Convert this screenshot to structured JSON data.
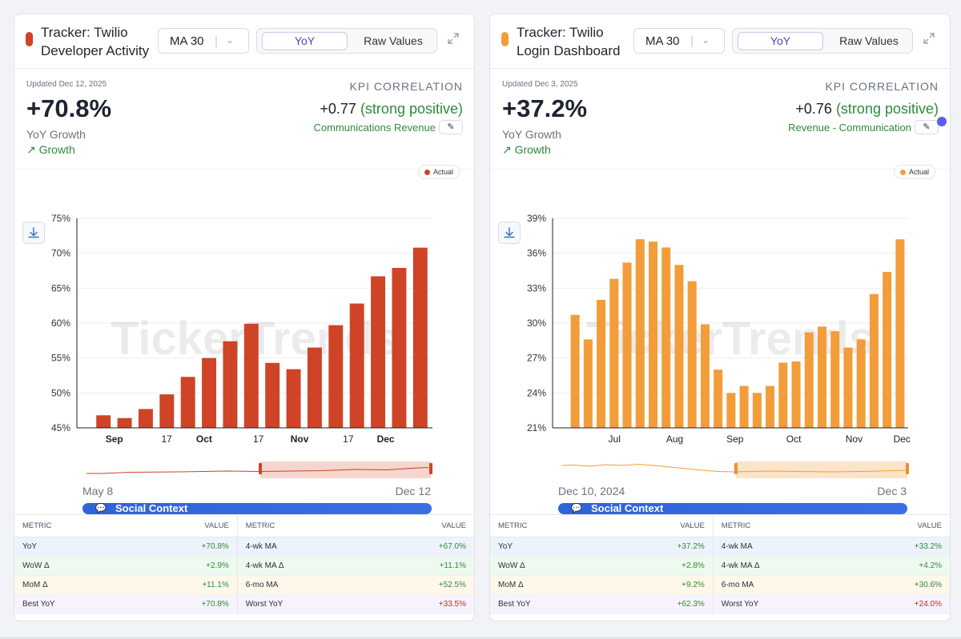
{
  "panels": [
    {
      "title": "Tracker: Twilio Developer Activity",
      "accent": "#cf4326",
      "ma_label": "MA 30",
      "toggle": {
        "active": "YoY",
        "inactive": "Raw Values"
      },
      "updated": "Updated Dec 12, 2025",
      "headline_value": "+70.8%",
      "headline_label": "YoY Growth",
      "trend_label": "Growth",
      "kpi_heading": "KPI CORRELATION",
      "corr_value": "+0.77",
      "corr_strength": "(strong positive)",
      "corr_metric": "Communications Revenue",
      "legend_label": "Actual",
      "watermark": "TickerTrends",
      "navigator": {
        "start": "May 8",
        "end": "Dec 12"
      },
      "social_label": "Social Context",
      "table": {
        "headers": [
          "METRIC",
          "VALUE",
          "METRIC",
          "VALUE"
        ],
        "rows": [
          {
            "m1": "YoY",
            "v1": "+70.8%",
            "m2": "4-wk MA",
            "v2": "+67.0%"
          },
          {
            "m1": "WoW Δ",
            "v1": "+2.9%",
            "m2": "4-wk MA Δ",
            "v2": "+11.1%"
          },
          {
            "m1": "MoM Δ",
            "v1": "+11.1%",
            "m2": "6-mo MA",
            "v2": "+52.5%"
          },
          {
            "m1": "Best YoY",
            "v1": "+70.8%",
            "m2": "Worst YoY",
            "v2": "+33.5%"
          }
        ]
      },
      "chart_data": {
        "type": "bar",
        "series": [
          {
            "name": "Actual",
            "values": [
              46.8,
              46.4,
              47.7,
              49.8,
              52.3,
              55.0,
              57.4,
              59.9,
              54.3,
              53.4,
              56.5,
              59.7,
              62.8,
              66.7,
              67.9,
              70.8
            ]
          }
        ],
        "ylim": [
          45,
          75
        ],
        "yticks": [
          "45%",
          "50%",
          "55%",
          "60%",
          "65%",
          "70%",
          "75%"
        ],
        "xticks": [
          {
            "label": "Sep",
            "bold": true,
            "at": 1.5
          },
          {
            "label": "17",
            "bold": false,
            "at": 4.3
          },
          {
            "label": "Oct",
            "bold": true,
            "at": 6.3
          },
          {
            "label": "17",
            "bold": false,
            "at": 9.2
          },
          {
            "label": "Nov",
            "bold": true,
            "at": 11.4
          },
          {
            "label": "17",
            "bold": false,
            "at": 14.0
          },
          {
            "label": "Dec",
            "bold": true,
            "at": 16.0
          }
        ],
        "xtick_span": 19
      }
    },
    {
      "title": "Tracker: Twilio Login Dashboard",
      "accent": "#f29d3a",
      "ma_label": "MA 30",
      "toggle": {
        "active": "YoY",
        "inactive": "Raw Values"
      },
      "updated": "Updated Dec 3, 2025",
      "headline_value": "+37.2%",
      "headline_label": "YoY Growth",
      "trend_label": "Growth",
      "kpi_heading": "KPI CORRELATION",
      "corr_value": "+0.76",
      "corr_strength": "(strong positive)",
      "corr_metric": "Revenue - Communication",
      "legend_label": "Actual",
      "watermark": "TickerTrends",
      "navigator": {
        "start": "Dec 10, 2024",
        "end": "Dec 3"
      },
      "social_label": "Social Context",
      "table": {
        "headers": [
          "METRIC",
          "VALUE",
          "METRIC",
          "VALUE"
        ],
        "rows": [
          {
            "m1": "YoY",
            "v1": "+37.2%",
            "m2": "4-wk MA",
            "v2": "+33.2%"
          },
          {
            "m1": "WoW Δ",
            "v1": "+2.8%",
            "m2": "4-wk MA Δ",
            "v2": "+4.2%"
          },
          {
            "m1": "MoM Δ",
            "v1": "+9.2%",
            "m2": "6-mo MA",
            "v2": "+30.6%"
          },
          {
            "m1": "Best YoY",
            "v1": "+62.3%",
            "m2": "Worst YoY",
            "v2": "+24.0%"
          }
        ]
      },
      "chart_data": {
        "type": "bar",
        "series": [
          {
            "name": "Actual",
            "values": [
              30.7,
              28.6,
              32.0,
              33.8,
              35.2,
              37.2,
              37.0,
              36.5,
              35.0,
              33.6,
              29.9,
              26.0,
              24.0,
              24.6,
              24.0,
              24.6,
              26.6,
              26.7,
              29.2,
              29.7,
              29.3,
              27.9,
              28.6,
              32.5,
              34.4,
              37.2
            ]
          }
        ],
        "ylim": [
          21,
          39
        ],
        "yticks": [
          "21%",
          "24%",
          "27%",
          "30%",
          "33%",
          "36%",
          "39%"
        ],
        "xticks": [
          {
            "label": "Jul",
            "bold": false,
            "at": 3.5
          },
          {
            "label": "Aug",
            "bold": false,
            "at": 7.4
          },
          {
            "label": "Sep",
            "bold": false,
            "at": 11.3
          },
          {
            "label": "Oct",
            "bold": false,
            "at": 15.1
          },
          {
            "label": "Nov",
            "bold": false,
            "at": 19.0
          },
          {
            "label": "Dec",
            "bold": false,
            "at": 22.1
          }
        ],
        "xtick_span": 23
      }
    }
  ]
}
